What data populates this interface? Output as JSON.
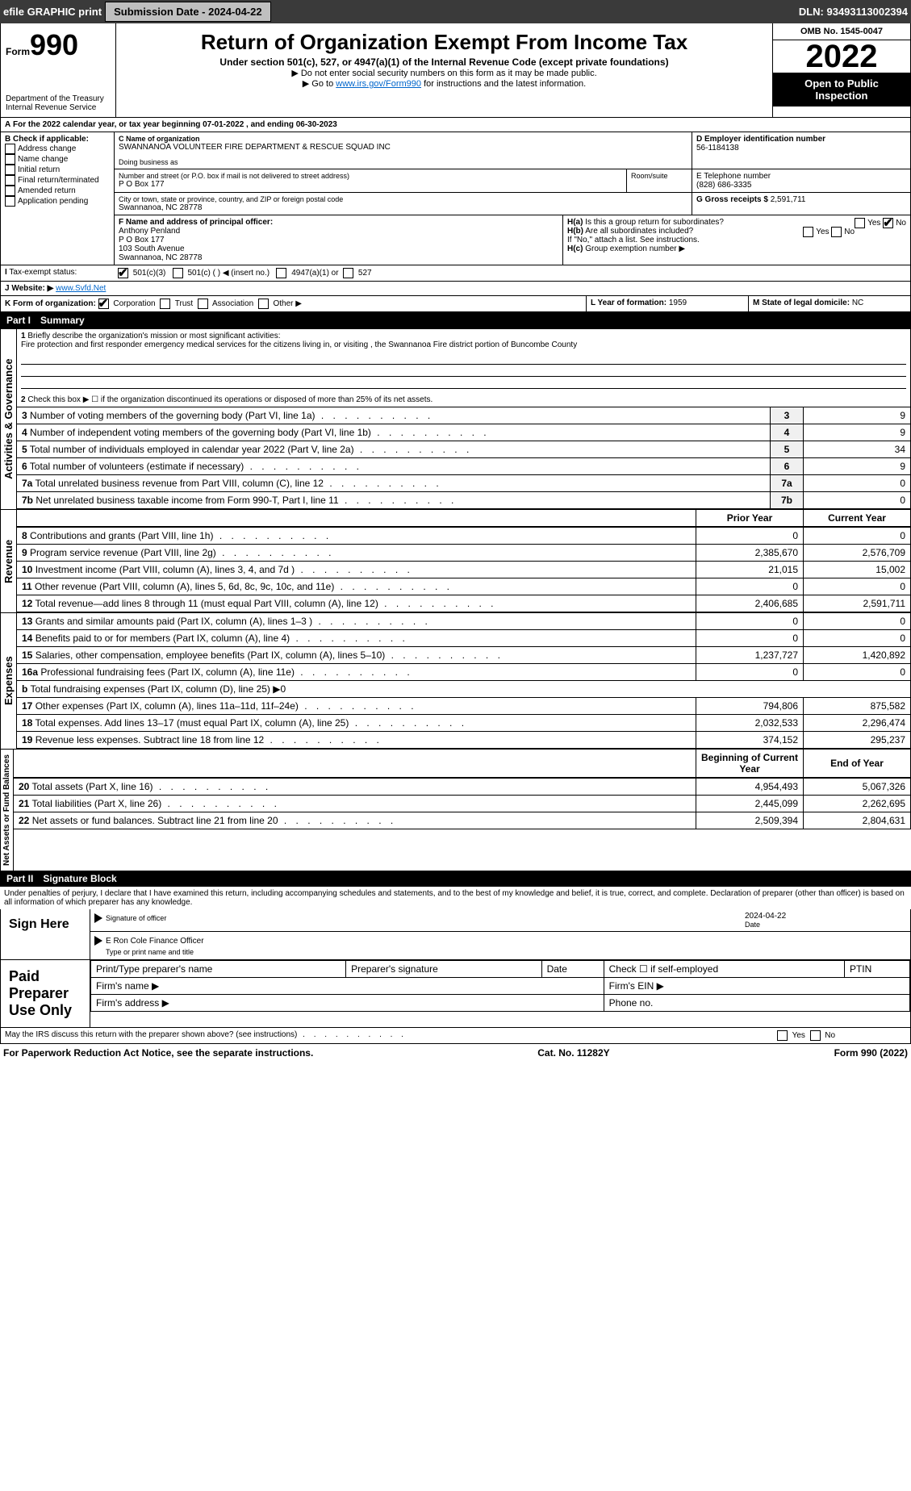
{
  "topbar": {
    "efile": "efile GRAPHIC print",
    "submission": "Submission Date - 2024-04-22",
    "dln": "DLN: 93493113002394"
  },
  "header": {
    "form_prefix": "Form",
    "form_no": "990",
    "title": "Return of Organization Exempt From Income Tax",
    "subtitle": "Under section 501(c), 527, or 4947(a)(1) of the Internal Revenue Code (except private foundations)",
    "note1": "▶ Do not enter social security numbers on this form as it may be made public.",
    "note2_pre": "▶ Go to ",
    "note2_link": "www.irs.gov/Form990",
    "note2_post": " for instructions and the latest information.",
    "dept": "Department of the Treasury",
    "irs": "Internal Revenue Service",
    "omb": "OMB No. 1545-0047",
    "year": "2022",
    "open": "Open to Public Inspection"
  },
  "A": {
    "text": "For the 2022 calendar year, or tax year beginning 07-01-2022     , and ending 06-30-2023"
  },
  "B": {
    "label": "B Check if applicable:",
    "items": [
      "Address change",
      "Name change",
      "Initial return",
      "Final return/terminated",
      "Amended return",
      "Application pending"
    ]
  },
  "C": {
    "label": "C Name of organization",
    "org": "SWANNANOA VOLUNTEER FIRE DEPARTMENT & RESCUE SQUAD INC",
    "dba_label": "Doing business as",
    "dba": "",
    "street_label": "Number and street (or P.O. box if mail is not delivered to street address)",
    "room_label": "Room/suite",
    "street": "P O Box 177",
    "city_label": "City or town, state or province, country, and ZIP or foreign postal code",
    "city": "Swannanoa, NC  28778"
  },
  "D": {
    "label": "D Employer identification number",
    "ein": "56-1184138"
  },
  "E": {
    "label": "E Telephone number",
    "phone": "(828) 686-3335"
  },
  "G": {
    "label": "G Gross receipts $",
    "amount": "2,591,711"
  },
  "F": {
    "label": "F  Name and address of principal officer:",
    "name": "Anthony Penland",
    "l1": "P O Box 177",
    "l2": "103 South Avenue",
    "l3": "Swannanoa, NC  28778"
  },
  "H": {
    "a": "Is this a group return for subordinates?",
    "b": "Are all subordinates included?",
    "note": "If \"No,\" attach a list. See instructions.",
    "c": "Group exemption number ▶",
    "yes": "Yes",
    "no": "No"
  },
  "I": {
    "label": "Tax-exempt status:",
    "o1": "501(c)(3)",
    "o2": "501(c) (  ) ◀ (insert no.)",
    "o3": "4947(a)(1) or",
    "o4": "527"
  },
  "J": {
    "label": "Website: ▶",
    "url": "www.Svfd.Net"
  },
  "K": {
    "label": "K Form of organization:",
    "o1": "Corporation",
    "o2": "Trust",
    "o3": "Association",
    "o4": "Other ▶"
  },
  "L": {
    "label": "L Year of formation:",
    "val": "1959"
  },
  "M": {
    "label": "M State of legal domicile:",
    "val": "NC"
  },
  "part1": {
    "title": "Part I",
    "name": "Summary"
  },
  "summary": {
    "l1_label": "Briefly describe the organization's mission or most significant activities:",
    "l1_text": "Fire protection and first responder emergency medical services for the citizens living in, or visiting , the Swannanoa Fire district portion of Buncombe County",
    "l2": "Check this box ▶ ☐  if the organization discontinued its operations or disposed of more than 25% of its net assets.",
    "rows_a": [
      {
        "n": "3",
        "t": "Number of voting members of the governing body (Part VI, line 1a)",
        "v": "9"
      },
      {
        "n": "4",
        "t": "Number of independent voting members of the governing body (Part VI, line 1b)",
        "v": "9"
      },
      {
        "n": "5",
        "t": "Total number of individuals employed in calendar year 2022 (Part V, line 2a)",
        "v": "34"
      },
      {
        "n": "6",
        "t": "Total number of volunteers (estimate if necessary)",
        "v": "9"
      },
      {
        "n": "7a",
        "t": "Total unrelated business revenue from Part VIII, column (C), line 12",
        "v": "0"
      },
      {
        "n": "7b",
        "t": "Net unrelated business taxable income from Form 990-T, Part I, line 11",
        "v": "0"
      }
    ],
    "col_prior": "Prior Year",
    "col_current": "Current Year",
    "revenue": [
      {
        "n": "8",
        "t": "Contributions and grants (Part VIII, line 1h)",
        "p": "0",
        "c": "0"
      },
      {
        "n": "9",
        "t": "Program service revenue (Part VIII, line 2g)",
        "p": "2,385,670",
        "c": "2,576,709"
      },
      {
        "n": "10",
        "t": "Investment income (Part VIII, column (A), lines 3, 4, and 7d )",
        "p": "21,015",
        "c": "15,002"
      },
      {
        "n": "11",
        "t": "Other revenue (Part VIII, column (A), lines 5, 6d, 8c, 9c, 10c, and 11e)",
        "p": "0",
        "c": "0"
      },
      {
        "n": "12",
        "t": "Total revenue—add lines 8 through 11 (must equal Part VIII, column (A), line 12)",
        "p": "2,406,685",
        "c": "2,591,711"
      }
    ],
    "expenses": [
      {
        "n": "13",
        "t": "Grants and similar amounts paid (Part IX, column (A), lines 1–3 )",
        "p": "0",
        "c": "0"
      },
      {
        "n": "14",
        "t": "Benefits paid to or for members (Part IX, column (A), line 4)",
        "p": "0",
        "c": "0"
      },
      {
        "n": "15",
        "t": "Salaries, other compensation, employee benefits (Part IX, column (A), lines 5–10)",
        "p": "1,237,727",
        "c": "1,420,892"
      },
      {
        "n": "16a",
        "t": "Professional fundraising fees (Part IX, column (A), line 11e)",
        "p": "0",
        "c": "0"
      },
      {
        "n": "b",
        "t": "Total fundraising expenses (Part IX, column (D), line 25) ▶0",
        "p": "",
        "c": ""
      },
      {
        "n": "17",
        "t": "Other expenses (Part IX, column (A), lines 11a–11d, 11f–24e)",
        "p": "794,806",
        "c": "875,582"
      },
      {
        "n": "18",
        "t": "Total expenses. Add lines 13–17 (must equal Part IX, column (A), line 25)",
        "p": "2,032,533",
        "c": "2,296,474"
      },
      {
        "n": "19",
        "t": "Revenue less expenses. Subtract line 18 from line 12",
        "p": "374,152",
        "c": "295,237"
      }
    ],
    "col_begin": "Beginning of Current Year",
    "col_end": "End of Year",
    "netassets": [
      {
        "n": "20",
        "t": "Total assets (Part X, line 16)",
        "p": "4,954,493",
        "c": "5,067,326"
      },
      {
        "n": "21",
        "t": "Total liabilities (Part X, line 26)",
        "p": "2,445,099",
        "c": "2,262,695"
      },
      {
        "n": "22",
        "t": "Net assets or fund balances. Subtract line 21 from line 20",
        "p": "2,509,394",
        "c": "2,804,631"
      }
    ],
    "sections": {
      "ag": "Activities & Governance",
      "rev": "Revenue",
      "exp": "Expenses",
      "na": "Net Assets or Fund Balances"
    }
  },
  "part2": {
    "title": "Part II",
    "name": "Signature Block",
    "decl": "Under penalties of perjury, I declare that I have examined this return, including accompanying schedules and statements, and to the best of my knowledge and belief, it is true, correct, and complete. Declaration of preparer (other than officer) is based on all information of which preparer has any knowledge.",
    "sign": "Sign Here",
    "sig_officer": "Signature of officer",
    "date": "Date",
    "sig_date": "2024-04-22",
    "name_title": "E Ron Cole  Finance Officer",
    "type_label": "Type or print name and title",
    "paid": "Paid Preparer Use Only",
    "p_name": "Print/Type preparer's name",
    "p_sig": "Preparer's signature",
    "p_date": "Date",
    "p_check": "Check ☐ if self-employed",
    "ptin": "PTIN",
    "firm": "Firm's name  ▶",
    "fein": "Firm's EIN ▶",
    "faddr": "Firm's address ▶",
    "fphone": "Phone no.",
    "may": "May the IRS discuss this return with the preparer shown above? (see instructions)"
  },
  "footer": {
    "pra": "For Paperwork Reduction Act Notice, see the separate instructions.",
    "cat": "Cat. No. 11282Y",
    "form": "Form 990 (2022)"
  }
}
